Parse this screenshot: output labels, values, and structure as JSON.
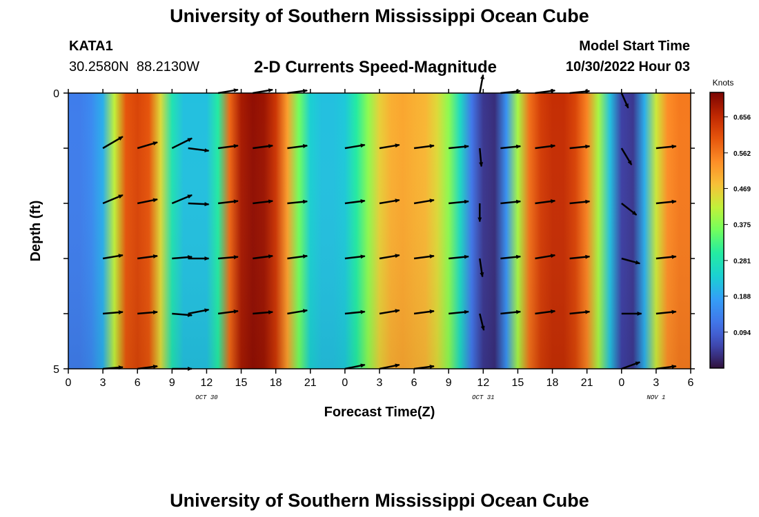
{
  "header": {
    "title": "University of Southern Mississippi Ocean Cube",
    "station_id": "KATA1",
    "station_coords": "30.2580N  88.2130W",
    "model_start_label": "Model Start Time",
    "model_start_value": "10/30/2022 Hour 03",
    "footer_title": "University of Southern Mississippi Ocean Cube"
  },
  "chart_data": {
    "type": "heatmap",
    "title": "2-D Currents Speed-Magnitude",
    "xlabel": "Forecast Time(Z)",
    "ylabel": "Depth (ft)",
    "y_ticks": [
      "0",
      "5"
    ],
    "ylim": [
      0,
      5
    ],
    "x_range_hours": [
      0,
      54
    ],
    "x_ticks": [
      "0",
      "3",
      "6",
      "9",
      "12",
      "15",
      "18",
      "21",
      "0",
      "3",
      "6",
      "9",
      "12",
      "15",
      "18",
      "21",
      "0",
      "3",
      "6"
    ],
    "date_labels": [
      {
        "text": "OCT 30",
        "hour": 12
      },
      {
        "text": "OCT 31",
        "hour": 36
      },
      {
        "text": "NOV 1",
        "hour": 51
      }
    ],
    "colorbar": {
      "label": "Knots",
      "vmin": 0.0,
      "vmax": 0.72,
      "ticks": [
        "0.656",
        "0.562",
        "0.469",
        "0.375",
        "0.281",
        "0.188",
        "0.094"
      ],
      "tick_values": [
        0.656,
        0.562,
        0.469,
        0.375,
        0.281,
        0.188,
        0.094
      ]
    },
    "speed_hours": [
      0,
      1,
      2,
      3,
      4,
      5,
      6,
      7,
      8,
      9,
      10,
      11,
      12,
      13,
      14,
      15,
      16,
      17,
      18,
      19,
      20,
      21,
      22,
      23,
      24,
      25,
      26,
      27,
      28,
      29,
      30,
      31,
      32,
      33,
      34,
      35,
      36,
      37,
      38,
      39,
      40,
      41,
      42,
      43,
      44,
      45,
      46,
      47,
      48,
      49,
      50,
      51,
      52,
      53,
      54
    ],
    "speed_knots": [
      0.13,
      0.13,
      0.15,
      0.2,
      0.42,
      0.6,
      0.62,
      0.6,
      0.45,
      0.28,
      0.22,
      0.22,
      0.22,
      0.3,
      0.58,
      0.68,
      0.7,
      0.69,
      0.64,
      0.52,
      0.36,
      0.24,
      0.22,
      0.22,
      0.23,
      0.3,
      0.38,
      0.46,
      0.5,
      0.51,
      0.5,
      0.49,
      0.45,
      0.38,
      0.26,
      0.12,
      0.04,
      0.03,
      0.16,
      0.4,
      0.57,
      0.63,
      0.65,
      0.65,
      0.62,
      0.55,
      0.4,
      0.22,
      0.05,
      0.04,
      0.2,
      0.43,
      0.54,
      0.56,
      0.56
    ],
    "arrow_depth_rows": [
      0,
      1,
      2,
      3,
      4,
      5
    ],
    "arrow_columns": [
      {
        "hour": 3,
        "u": [
          null,
          0.6,
          0.6,
          0.6,
          0.6,
          0.6
        ],
        "v": [
          null,
          0.35,
          0.25,
          0.1,
          0.05,
          0.05
        ]
      },
      {
        "hour": 6,
        "u": [
          null,
          0.6,
          0.6,
          0.6,
          0.6,
          0.6
        ],
        "v": [
          null,
          0.18,
          0.12,
          0.08,
          0.05,
          0.08
        ]
      },
      {
        "hour": 9,
        "u": [
          null,
          0.6,
          0.6,
          0.6,
          0.6,
          0.6
        ],
        "v": [
          null,
          0.3,
          0.25,
          0.05,
          -0.05,
          0.0
        ]
      },
      {
        "hour": 10.4,
        "u": [
          null,
          0.62,
          0.62,
          0.62,
          0.62,
          null
        ],
        "v": [
          null,
          -0.08,
          -0.03,
          0.0,
          0.12,
          null
        ]
      },
      {
        "hour": 13,
        "u": [
          0.6,
          0.6,
          0.6,
          0.6,
          0.6,
          null
        ],
        "v": [
          0.1,
          0.08,
          0.07,
          0.05,
          0.08,
          null
        ]
      },
      {
        "hour": 16,
        "u": [
          0.6,
          0.6,
          0.6,
          0.6,
          0.6,
          null
        ],
        "v": [
          0.1,
          0.08,
          0.07,
          0.08,
          0.05,
          null
        ]
      },
      {
        "hour": 19,
        "u": [
          0.6,
          0.6,
          0.6,
          0.6,
          0.6,
          null
        ],
        "v": [
          0.08,
          0.08,
          0.06,
          0.08,
          0.1,
          null
        ]
      },
      {
        "hour": 24,
        "u": [
          null,
          0.6,
          0.6,
          0.6,
          0.6,
          0.6
        ],
        "v": [
          null,
          0.1,
          0.08,
          0.07,
          0.06,
          0.12
        ]
      },
      {
        "hour": 27,
        "u": [
          null,
          0.6,
          0.6,
          0.6,
          0.6,
          0.6
        ],
        "v": [
          null,
          0.1,
          0.1,
          0.1,
          0.1,
          0.12
        ]
      },
      {
        "hour": 30,
        "u": [
          null,
          0.6,
          0.6,
          0.6,
          0.6,
          0.6
        ],
        "v": [
          null,
          0.08,
          0.1,
          0.08,
          0.08,
          0.08
        ]
      },
      {
        "hour": 33,
        "u": [
          null,
          0.6,
          0.6,
          0.6,
          0.6,
          null
        ],
        "v": [
          null,
          0.06,
          0.06,
          0.06,
          0.06,
          null
        ]
      },
      {
        "hour": 35.7,
        "u": [
          0.1,
          0.05,
          0.0,
          0.08,
          0.12,
          null
        ],
        "v": [
          0.55,
          -0.55,
          -0.55,
          -0.55,
          -0.5,
          null
        ]
      },
      {
        "hour": 37.5,
        "u": [
          0.6,
          0.6,
          0.6,
          0.6,
          0.6,
          null
        ],
        "v": [
          0.06,
          0.06,
          0.06,
          0.06,
          0.06,
          null
        ]
      },
      {
        "hour": 40.5,
        "u": [
          0.6,
          0.6,
          0.6,
          0.6,
          0.6,
          null
        ],
        "v": [
          0.08,
          0.08,
          0.08,
          0.1,
          0.08,
          null
        ]
      },
      {
        "hour": 43.5,
        "u": [
          0.6,
          0.6,
          0.6,
          0.6,
          0.6,
          null
        ],
        "v": [
          0.06,
          0.06,
          0.06,
          0.06,
          0.06,
          null
        ]
      },
      {
        "hour": 48,
        "u": [
          0.2,
          0.3,
          0.45,
          0.55,
          0.6,
          0.55
        ],
        "v": [
          -0.45,
          -0.5,
          -0.35,
          -0.15,
          0.0,
          0.2
        ]
      },
      {
        "hour": 51,
        "u": [
          null,
          0.6,
          0.6,
          0.6,
          0.6,
          0.6
        ],
        "v": [
          null,
          0.06,
          0.06,
          0.06,
          0.06,
          0.08
        ]
      }
    ]
  }
}
